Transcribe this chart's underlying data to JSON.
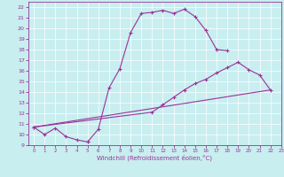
{
  "xlabel": "Windchill (Refroidissement éolien,°C)",
  "background_color": "#c8eef0",
  "line_color": "#993399",
  "xlim": [
    -0.5,
    23
  ],
  "ylim": [
    9,
    22.5
  ],
  "xticks": [
    0,
    1,
    2,
    3,
    4,
    5,
    6,
    7,
    8,
    9,
    10,
    11,
    12,
    13,
    14,
    15,
    16,
    17,
    18,
    19,
    20,
    21,
    22,
    23
  ],
  "yticks": [
    9,
    10,
    11,
    12,
    13,
    14,
    15,
    16,
    17,
    18,
    19,
    20,
    21,
    22
  ],
  "s1x": [
    0,
    1,
    2,
    3,
    4,
    5
  ],
  "s1y": [
    10.7,
    10.0,
    10.6,
    9.8,
    9.5,
    9.3
  ],
  "s2x": [
    5,
    6,
    7,
    8,
    9,
    10,
    11,
    12,
    13,
    14,
    15,
    16,
    17,
    18
  ],
  "s2y": [
    9.3,
    10.5,
    14.4,
    16.2,
    19.6,
    21.4,
    21.5,
    21.7,
    21.4,
    21.8,
    21.1,
    19.8,
    18.0,
    17.9
  ],
  "s3x": [
    0,
    11,
    12,
    13,
    14,
    15,
    16,
    17,
    18,
    19,
    20,
    21,
    22
  ],
  "s3y": [
    10.7,
    12.1,
    12.8,
    13.5,
    14.2,
    14.8,
    15.2,
    15.8,
    16.3,
    16.8,
    16.1,
    15.6,
    14.2
  ],
  "s4x": [
    0,
    22
  ],
  "s4y": [
    10.7,
    14.2
  ]
}
